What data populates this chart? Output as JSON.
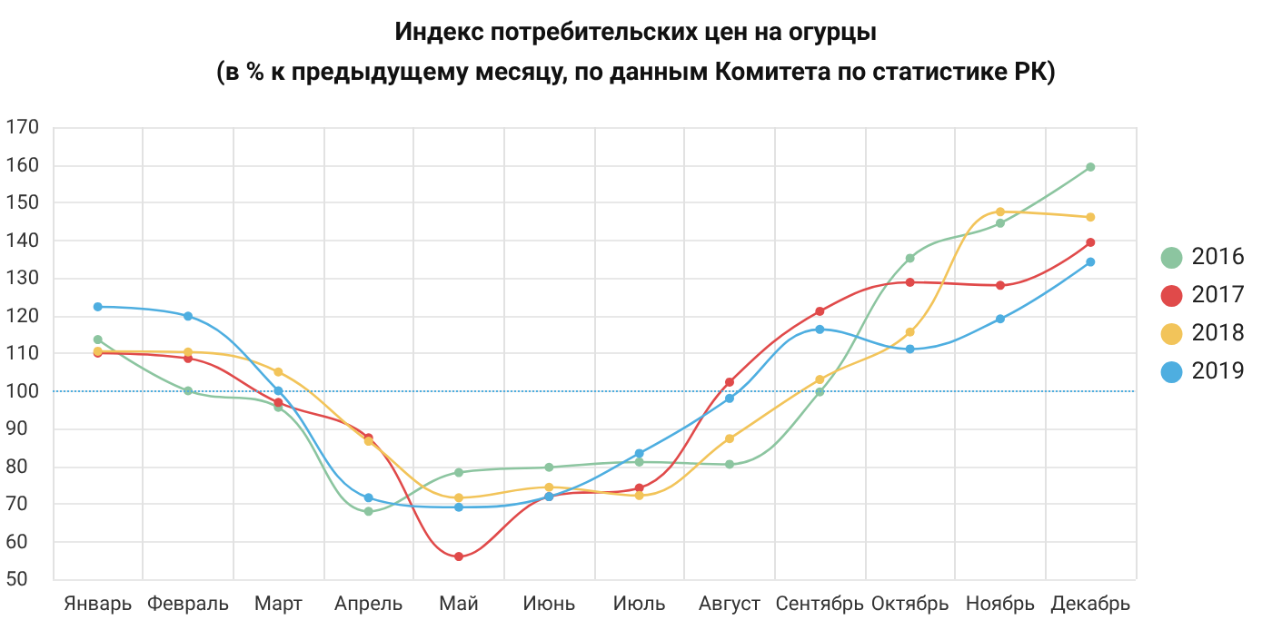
{
  "chart_data": {
    "type": "line",
    "title": "Индекс потребительских цен на огурцы",
    "subtitle": "(в % к предыдущему месяцу, по данным Комитета по статистике РК)",
    "categories": [
      "Январь",
      "Февраль",
      "Март",
      "Апрель",
      "Май",
      "Июнь",
      "Июль",
      "Август",
      "Сентябрь",
      "Октябрь",
      "Ноябрь",
      "Декабрь"
    ],
    "series": [
      {
        "name": "2016",
        "color": "#8cc5a0",
        "values": [
          113.6,
          100,
          95.6,
          68,
          78.3,
          79.7,
          81.1,
          80.5,
          99.7,
          135.2,
          144.5,
          159.4
        ]
      },
      {
        "name": "2017",
        "color": "#e04a4a",
        "values": [
          110,
          108.6,
          96.9,
          87.5,
          56,
          71.9,
          74.2,
          102.3,
          121.1,
          128.8,
          128,
          139.4
        ]
      },
      {
        "name": "2018",
        "color": "#f2c45a",
        "values": [
          110.5,
          110.3,
          105,
          86.6,
          71.6,
          74.4,
          72.2,
          87.3,
          103,
          115.6,
          147.5,
          146.1
        ]
      },
      {
        "name": "2019",
        "color": "#4eaee0",
        "values": [
          122.3,
          119.8,
          100,
          71.6,
          69.1,
          71.9,
          83.4,
          98,
          116.3,
          111.1,
          119.1,
          134.2
        ]
      }
    ],
    "ylim": [
      50,
      170
    ],
    "yticks": [
      50,
      60,
      70,
      80,
      90,
      100,
      110,
      120,
      130,
      140,
      150,
      160,
      170
    ],
    "ref_lines": [
      {
        "axis": "y",
        "value": 100,
        "color": "#4eaee0",
        "line_style": "dotted"
      }
    ],
    "grid": true,
    "legend": "right",
    "marker": "circle",
    "line_style": "solid"
  }
}
